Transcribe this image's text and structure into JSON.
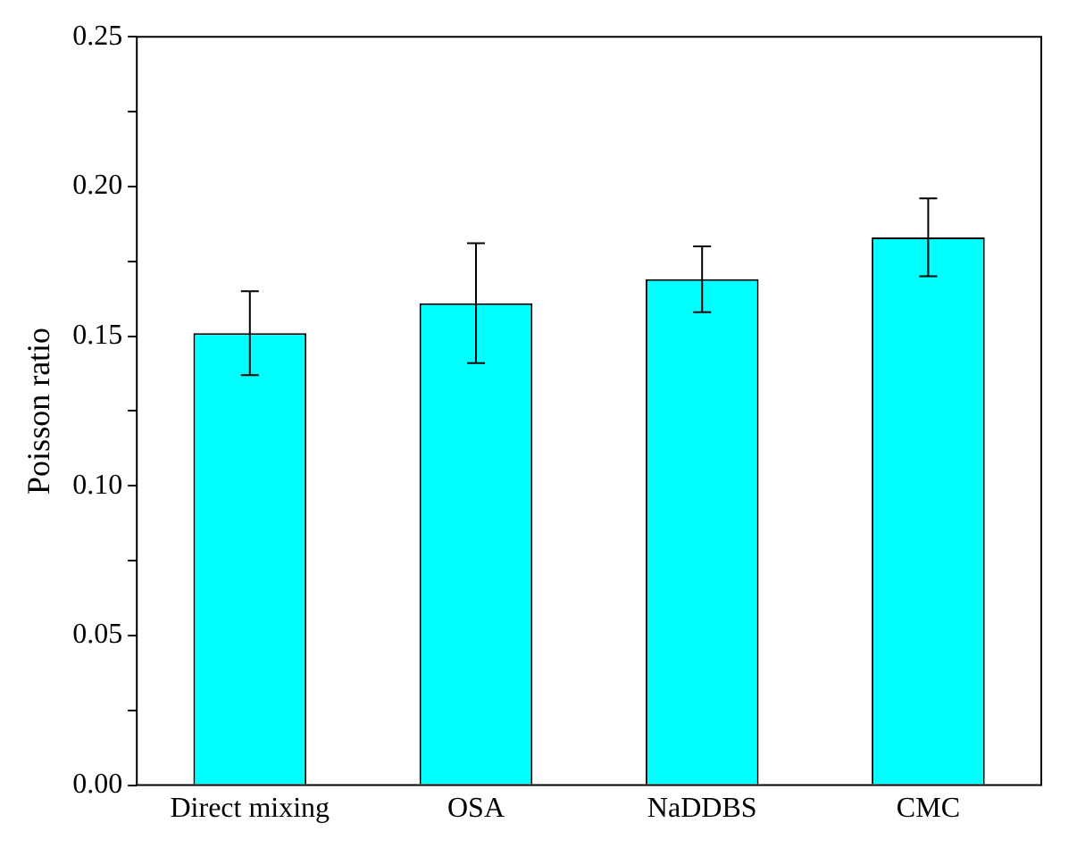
{
  "chart_data": {
    "type": "bar",
    "ylabel": "Poisson ratio",
    "categories": [
      "Direct mixing",
      "OSA",
      "NaDDBS",
      "CMC"
    ],
    "values": [
      0.151,
      0.161,
      0.169,
      0.183
    ],
    "errors": [
      0.014,
      0.02,
      0.011,
      0.013
    ],
    "color": "#00ffff",
    "ylim": [
      0,
      0.25
    ],
    "yticks": [
      "0.00",
      {
        "value": 0.025,
        "label": null
      },
      {
        "value": 0.05,
        "label": "0.05"
      },
      {
        "value": 0.075,
        "label": null
      },
      {
        "value": 0.1,
        "label": "0.10"
      },
      {
        "value": 0.125,
        "label": null
      },
      {
        "value": 0.15,
        "label": "0.15"
      },
      {
        "value": 0.175,
        "label": null
      },
      {
        "value": 0.2,
        "label": "0.20"
      },
      {
        "value": 0.225,
        "label": null
      },
      {
        "value": 0.25,
        "label": "0.25"
      }
    ],
    "grid": false,
    "legend": false
  }
}
